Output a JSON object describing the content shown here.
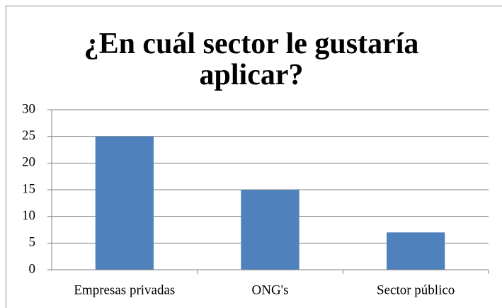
{
  "chart_data": {
    "type": "bar",
    "title": "¿En cuál sector le gustaría aplicar?",
    "categories": [
      "Empresas privadas",
      "ONG's",
      "Sector público"
    ],
    "values": [
      25,
      15,
      7
    ],
    "color": "#4f81bd",
    "ylim": [
      0,
      30
    ],
    "yticks": [
      0,
      5,
      10,
      15,
      20,
      25,
      30
    ],
    "grid": true
  }
}
